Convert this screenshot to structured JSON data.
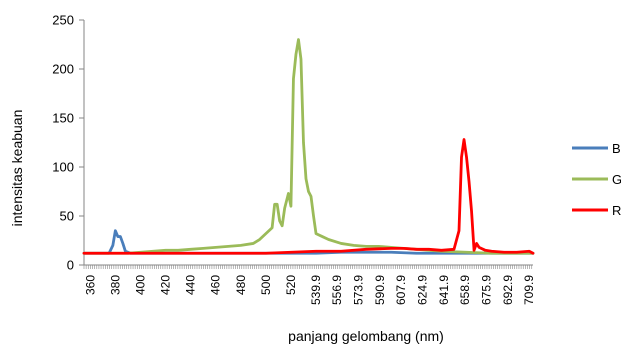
{
  "chart_data": {
    "type": "line",
    "title": "",
    "xlabel": "panjang gelombang (nm)",
    "ylabel": "intensitas keabuan",
    "ylim": [
      0,
      250
    ],
    "yticks": [
      "0",
      "50",
      "100",
      "150",
      "200",
      "250"
    ],
    "xlim": [
      355,
      713
    ],
    "xticks": [
      "360",
      "380",
      "400",
      "420",
      "440",
      "460",
      "480",
      "500",
      "520",
      "539.9",
      "556.9",
      "573.9",
      "590.9",
      "607.9",
      "624.9",
      "641.9",
      "658.9",
      "675.9",
      "692.9",
      "709.9"
    ],
    "grid": false,
    "legend_position": "right",
    "series": [
      {
        "name": "B",
        "color": "#4a7ebb",
        "x": [
          355,
          370,
          375,
          378,
          380,
          382,
          384,
          386,
          388,
          392,
          400,
          420,
          440,
          460,
          480,
          500,
          520,
          540,
          560,
          580,
          600,
          620,
          640,
          660,
          680,
          700,
          713
        ],
        "y": [
          12,
          12,
          12,
          20,
          35,
          29,
          29,
          22,
          14,
          12,
          12,
          12,
          12,
          12,
          12,
          12,
          12,
          12,
          13,
          13,
          13,
          12,
          12,
          12,
          12,
          12,
          12
        ]
      },
      {
        "name": "G",
        "color": "#9bbb59",
        "x": [
          355,
          390,
          400,
          410,
          420,
          430,
          440,
          450,
          460,
          470,
          480,
          490,
          495,
          500,
          505,
          507,
          509,
          511,
          513,
          515,
          518,
          520,
          522,
          524,
          526,
          528,
          530,
          532,
          534,
          536,
          538,
          540,
          545,
          550,
          560,
          570,
          580,
          590,
          600,
          610,
          620,
          640,
          660,
          680,
          700,
          713
        ],
        "y": [
          12,
          12,
          13,
          14,
          15,
          15,
          16,
          17,
          18,
          19,
          20,
          22,
          26,
          32,
          38,
          62,
          62,
          45,
          40,
          58,
          73,
          60,
          190,
          215,
          230,
          210,
          125,
          88,
          75,
          70,
          50,
          32,
          29,
          26,
          22,
          20,
          19,
          19,
          18,
          17,
          16,
          14,
          13,
          12,
          12,
          12
        ]
      },
      {
        "name": "R",
        "color": "#ff0000",
        "x": [
          355,
          400,
          450,
          500,
          520,
          540,
          560,
          580,
          600,
          610,
          620,
          630,
          640,
          650,
          654,
          656,
          658,
          660,
          662,
          664,
          666,
          668,
          670,
          675,
          680,
          690,
          700,
          710,
          713
        ],
        "y": [
          12,
          12,
          12,
          12,
          13,
          14,
          14,
          16,
          17,
          17,
          16,
          16,
          15,
          16,
          35,
          110,
          128,
          110,
          85,
          55,
          15,
          22,
          18,
          15,
          14,
          13,
          13,
          14,
          12
        ]
      }
    ]
  }
}
